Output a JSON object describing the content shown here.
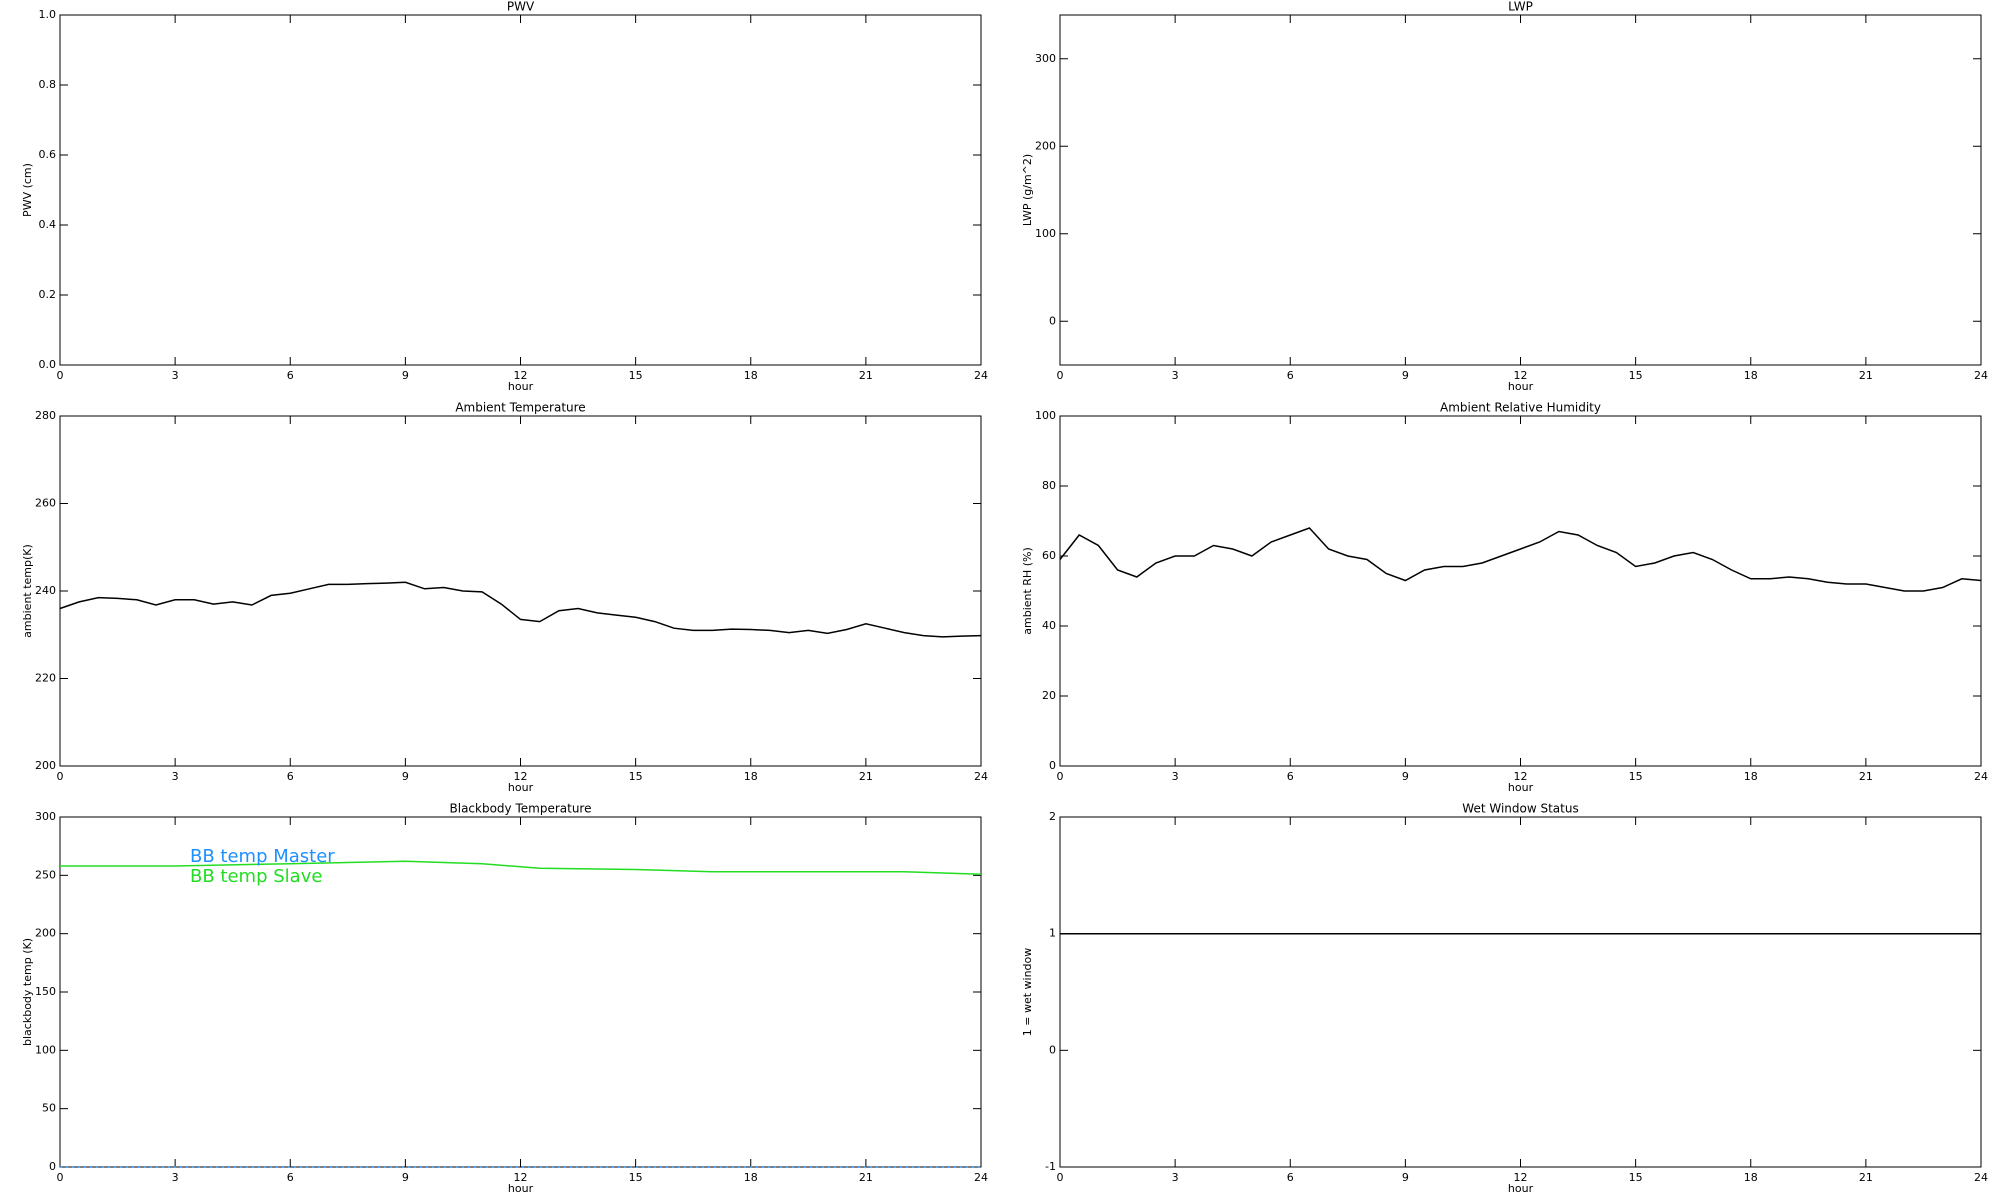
{
  "chart_data": [
    {
      "type": "line",
      "title": "PWV",
      "xlabel": "hour",
      "ylabel": "PWV (cm)",
      "xlim": [
        0,
        24
      ],
      "xticks": [
        0,
        3,
        6,
        9,
        12,
        15,
        18,
        21,
        24
      ],
      "ylim": [
        0,
        1
      ],
      "yticks": [
        {
          "value": 0,
          "label": "0.0"
        },
        {
          "value": 0.2,
          "label": "0.2"
        },
        {
          "value": 0.4,
          "label": "0.4"
        },
        {
          "value": 0.6,
          "label": "0.6"
        },
        {
          "value": 0.8,
          "label": "0.8"
        },
        {
          "value": 1,
          "label": "1.0"
        }
      ],
      "x": [],
      "series": []
    },
    {
      "type": "line",
      "title": "LWP",
      "xlabel": "hour",
      "ylabel": "LWP (g/m^2)",
      "xlim": [
        0,
        24
      ],
      "xticks": [
        0,
        3,
        6,
        9,
        12,
        15,
        18,
        21,
        24
      ],
      "ylim": [
        -50,
        350
      ],
      "yticks": [
        0,
        100,
        200,
        300
      ],
      "x": [],
      "series": []
    },
    {
      "type": "line",
      "title": "Ambient Temperature",
      "xlabel": "hour",
      "ylabel": "ambient temp(K)",
      "xlim": [
        0,
        24
      ],
      "xticks": [
        0,
        3,
        6,
        9,
        12,
        15,
        18,
        21,
        24
      ],
      "ylim": [
        200,
        280
      ],
      "yticks": [
        200,
        220,
        240,
        260,
        280
      ],
      "x": [
        0,
        0.5,
        1,
        1.5,
        2,
        2.5,
        3,
        3.5,
        4,
        4.5,
        5,
        5.5,
        6,
        6.5,
        7,
        7.5,
        8,
        8.5,
        9,
        9.5,
        10,
        10.5,
        11,
        11.5,
        12,
        12.5,
        13,
        13.5,
        14,
        14.5,
        15,
        15.5,
        16,
        16.5,
        17,
        17.5,
        18,
        18.5,
        19,
        19.5,
        20,
        20.5,
        21,
        21.5,
        22,
        22.5,
        23,
        23.5,
        24
      ],
      "series": [
        {
          "color": "#000000",
          "values": [
            236,
            237.5,
            238.5,
            238.3,
            238,
            236.8,
            238,
            238,
            237,
            237.5,
            236.8,
            239,
            239.5,
            240.5,
            241.5,
            241.5,
            241.7,
            241.8,
            242,
            240.5,
            240.8,
            240,
            239.8,
            237,
            233.5,
            233,
            235.5,
            236,
            235,
            234.5,
            234,
            233,
            231.5,
            231,
            231,
            231.3,
            231.2,
            231,
            230.5,
            231,
            230.3,
            231.2,
            232.5,
            231.5,
            230.5,
            229.8,
            229.5,
            229.7,
            229.8
          ]
        }
      ]
    },
    {
      "type": "line",
      "title": "Ambient Relative Humidity",
      "xlabel": "hour",
      "ylabel": "ambient RH (%)",
      "xlim": [
        0,
        24
      ],
      "xticks": [
        0,
        3,
        6,
        9,
        12,
        15,
        18,
        21,
        24
      ],
      "ylim": [
        0,
        100
      ],
      "yticks": [
        0,
        20,
        40,
        60,
        80,
        100
      ],
      "x": [
        0,
        0.5,
        1,
        1.5,
        2,
        2.5,
        3,
        3.5,
        4,
        4.5,
        5,
        5.5,
        6,
        6.5,
        7,
        7.5,
        8,
        8.5,
        9,
        9.5,
        10,
        10.5,
        11,
        11.5,
        12,
        12.5,
        13,
        13.5,
        14,
        14.5,
        15,
        15.5,
        16,
        16.5,
        17,
        17.5,
        18,
        18.5,
        19,
        19.5,
        20,
        20.5,
        21,
        21.5,
        22,
        22.5,
        23,
        23.5,
        24
      ],
      "series": [
        {
          "color": "#000000",
          "values": [
            59,
            66,
            63,
            56,
            54,
            58,
            60,
            60,
            63,
            62,
            60,
            64,
            66,
            68,
            62,
            60,
            59,
            55,
            53,
            56,
            57,
            57,
            58,
            60,
            62,
            64,
            67,
            66,
            63,
            61,
            57,
            58,
            60,
            61,
            59,
            56,
            53.5,
            53.5,
            54,
            53.5,
            52.5,
            52,
            52,
            51,
            50,
            50,
            51,
            53.5,
            53
          ]
        }
      ]
    },
    {
      "type": "line",
      "title": "Blackbody Temperature",
      "xlabel": "hour",
      "ylabel": "blackbody temp (K)",
      "xlim": [
        0,
        24
      ],
      "xticks": [
        0,
        3,
        6,
        9,
        12,
        15,
        18,
        21,
        24
      ],
      "ylim": [
        0,
        300
      ],
      "yticks": [
        0,
        50,
        100,
        150,
        200,
        250,
        300
      ],
      "x": [
        0,
        3,
        6,
        9,
        11,
        12.5,
        15,
        17,
        20,
        22,
        24
      ],
      "series": [
        {
          "name": "BB temp Master",
          "color": "#1e8fff",
          "line_style": "dotted",
          "values": [
            0,
            0,
            0,
            0,
            0,
            0,
            0,
            0,
            0,
            0,
            0
          ]
        },
        {
          "name": "BB temp Slave",
          "color": "#22dd22",
          "values": [
            258,
            258,
            260,
            262,
            260,
            256,
            255,
            253,
            253,
            253,
            251
          ]
        }
      ]
    },
    {
      "type": "line",
      "title": "Wet Window Status",
      "xlabel": "hour",
      "ylabel": "1 = wet window",
      "xlim": [
        0,
        24
      ],
      "xticks": [
        0,
        3,
        6,
        9,
        12,
        15,
        18,
        21,
        24
      ],
      "ylim": [
        -1,
        2
      ],
      "yticks": [
        -1,
        0,
        1,
        2
      ],
      "x": [
        0,
        24
      ],
      "series": [
        {
          "color": "#000000",
          "values": [
            1,
            1
          ]
        }
      ]
    }
  ]
}
